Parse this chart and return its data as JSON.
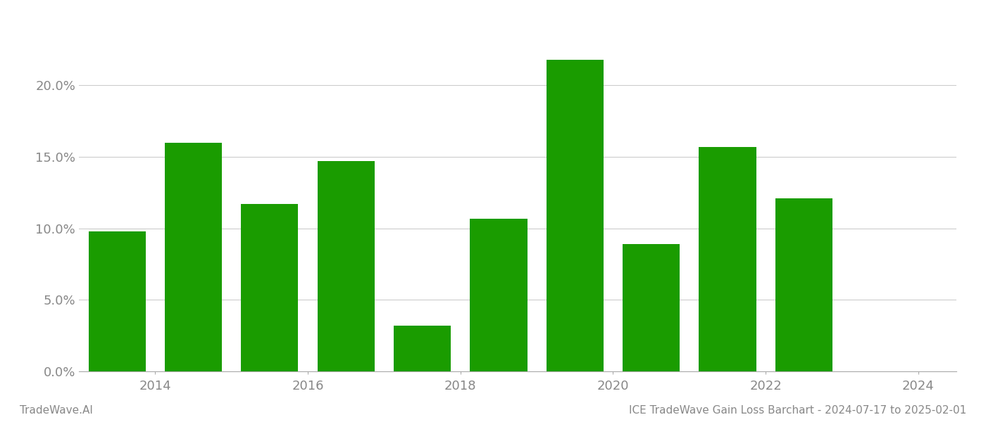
{
  "years": [
    2013.5,
    2014.5,
    2015.5,
    2016.5,
    2017.5,
    2018.5,
    2019.5,
    2020.5,
    2021.5,
    2022.5
  ],
  "values": [
    0.098,
    0.16,
    0.117,
    0.147,
    0.032,
    0.107,
    0.218,
    0.089,
    0.157,
    0.121
  ],
  "bar_color": "#1a9c00",
  "ylim": [
    0,
    0.245
  ],
  "yticks": [
    0.0,
    0.05,
    0.1,
    0.15,
    0.2
  ],
  "ytick_labels": [
    "0.0%",
    "5.0%",
    "10.0%",
    "15.0%",
    "20.0%"
  ],
  "xtick_positions": [
    2014,
    2016,
    2018,
    2020,
    2022,
    2024
  ],
  "xtick_labels": [
    "2014",
    "2016",
    "2018",
    "2020",
    "2022",
    "2024"
  ],
  "xlim": [
    2013.0,
    2024.5
  ],
  "background_color": "#ffffff",
  "grid_color": "#cccccc",
  "footer_left": "TradeWave.AI",
  "footer_right": "ICE TradeWave Gain Loss Barchart - 2024-07-17 to 2025-02-01",
  "bar_width": 0.75,
  "spine_color": "#aaaaaa",
  "tick_label_color": "#888888",
  "footer_color": "#888888",
  "footer_fontsize": 11,
  "tick_fontsize": 13
}
